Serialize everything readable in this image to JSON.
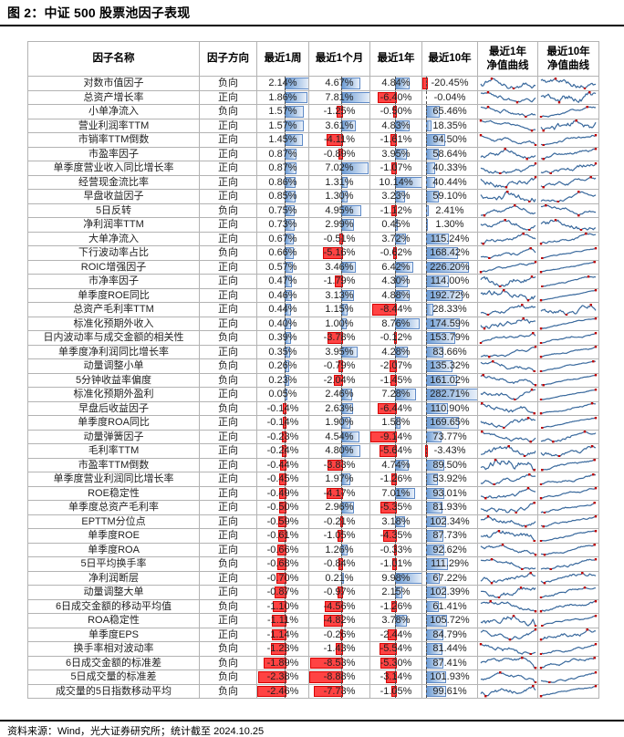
{
  "title": "图 2：中证 500 股票池因子表现",
  "source_note": "资料来源：Wind，光大证券研究所；统计截至 2024.10.25",
  "colors": {
    "bar_positive_solid": "#6D9CD4",
    "bar_positive_fade": "#EAF1FA",
    "bar_positive_border": "#5E8AC7",
    "bar_negative_fill": "#FF4343",
    "bar_negative_border": "#D90000",
    "sparkline_line": "#38689C",
    "sparkline_marker": "#C00000",
    "grid_border": "#B3B3B3",
    "rule_black": "#000000"
  },
  "table": {
    "headers": [
      "因子名称",
      "因子方向",
      "最近1周",
      "最近1个月",
      "最近1年",
      "最近10年",
      "最近1年\n净值曲线",
      "最近10年\n净值曲线"
    ],
    "bar_columns": [
      "w1",
      "m1",
      "y1",
      "y10"
    ],
    "rows": [
      {
        "name": "对数市值因子",
        "dir": "负向",
        "w1": "2.14%",
        "m1": "4.67%",
        "y1": "4.84%",
        "y10": "-20.45%"
      },
      {
        "name": "总资产增长率",
        "dir": "正向",
        "w1": "1.86%",
        "m1": "7.81%",
        "y1": "-6.40%",
        "y10": "-0.04%"
      },
      {
        "name": "小单净流入",
        "dir": "负向",
        "w1": "1.57%",
        "m1": "-1.25%",
        "y1": "-0.50%",
        "y10": "65.46%"
      },
      {
        "name": "营业利润率TTM",
        "dir": "正向",
        "w1": "1.57%",
        "m1": "3.61%",
        "y1": "4.83%",
        "y10": "18.35%"
      },
      {
        "name": "市销率TTM倒数",
        "dir": "正向",
        "w1": "1.45%",
        "m1": "-4.11%",
        "y1": "-1.61%",
        "y10": "94.50%"
      },
      {
        "name": "市盈率因子",
        "dir": "正向",
        "w1": "0.87%",
        "m1": "-0.89%",
        "y1": "3.95%",
        "y10": "58.64%"
      },
      {
        "name": "单季度营业收入同比增长率",
        "dir": "正向",
        "w1": "0.87%",
        "m1": "7.02%",
        "y1": "-1.07%",
        "y10": "40.33%"
      },
      {
        "name": "经营现金流比率",
        "dir": "正向",
        "w1": "0.86%",
        "m1": "1.31%",
        "y1": "10.14%",
        "y10": "40.44%"
      },
      {
        "name": "早盘收益因子",
        "dir": "正向",
        "w1": "0.85%",
        "m1": "1.30%",
        "y1": "3.23%",
        "y10": "59.10%"
      },
      {
        "name": "5日反转",
        "dir": "负向",
        "w1": "0.75%",
        "m1": "4.95%",
        "y1": "-1.12%",
        "y10": "2.41%"
      },
      {
        "name": "净利润率TTM",
        "dir": "正向",
        "w1": "0.73%",
        "m1": "2.99%",
        "y1": "0.45%",
        "y10": "1.30%"
      },
      {
        "name": "大单净流入",
        "dir": "正向",
        "w1": "0.67%",
        "m1": "-0.51%",
        "y1": "3.72%",
        "y10": "115.24%"
      },
      {
        "name": "下行波动率占比",
        "dir": "负向",
        "w1": "0.66%",
        "m1": "-5.16%",
        "y1": "-0.62%",
        "y10": "168.42%"
      },
      {
        "name": "ROIC增强因子",
        "dir": "正向",
        "w1": "0.57%",
        "m1": "3.46%",
        "y1": "6.42%",
        "y10": "226.20%"
      },
      {
        "name": "市净率因子",
        "dir": "正向",
        "w1": "0.47%",
        "m1": "-1.79%",
        "y1": "4.30%",
        "y10": "114.00%"
      },
      {
        "name": "单季度ROE同比",
        "dir": "正向",
        "w1": "0.46%",
        "m1": "3.13%",
        "y1": "4.88%",
        "y10": "192.72%"
      },
      {
        "name": "总资产毛利率TTM",
        "dir": "正向",
        "w1": "0.44%",
        "m1": "1.15%",
        "y1": "-8.44%",
        "y10": "28.33%"
      },
      {
        "name": "标准化预期外收入",
        "dir": "正向",
        "w1": "0.40%",
        "m1": "1.00%",
        "y1": "8.76%",
        "y10": "174.59%"
      },
      {
        "name": "日内波动率与成交金额的相关性",
        "dir": "负向",
        "w1": "0.39%",
        "m1": "-3.78%",
        "y1": "-0.12%",
        "y10": "153.79%"
      },
      {
        "name": "单季度净利润同比增长率",
        "dir": "正向",
        "w1": "0.35%",
        "m1": "3.95%",
        "y1": "4.28%",
        "y10": "83.66%"
      },
      {
        "name": "动量调整小单",
        "dir": "负向",
        "w1": "0.26%",
        "m1": "-0.79%",
        "y1": "-2.07%",
        "y10": "135.32%"
      },
      {
        "name": "5分钟收益率偏度",
        "dir": "负向",
        "w1": "0.23%",
        "m1": "-2.04%",
        "y1": "-1.45%",
        "y10": "161.02%"
      },
      {
        "name": "标准化预期外盈利",
        "dir": "正向",
        "w1": "0.05%",
        "m1": "2.46%",
        "y1": "7.28%",
        "y10": "282.71%"
      },
      {
        "name": "早盘后收益因子",
        "dir": "负向",
        "w1": "-0.14%",
        "m1": "2.63%",
        "y1": "-6.44%",
        "y10": "110.90%"
      },
      {
        "name": "单季度ROA同比",
        "dir": "正向",
        "w1": "-0.14%",
        "m1": "1.90%",
        "y1": "1.58%",
        "y10": "169.65%"
      },
      {
        "name": "动量弹簧因子",
        "dir": "正向",
        "w1": "-0.23%",
        "m1": "4.54%",
        "y1": "-9.14%",
        "y10": "73.77%"
      },
      {
        "name": "毛利率TTM",
        "dir": "正向",
        "w1": "-0.24%",
        "m1": "4.80%",
        "y1": "-5.64%",
        "y10": "-3.43%"
      },
      {
        "name": "市盈率TTM倒数",
        "dir": "正向",
        "w1": "-0.44%",
        "m1": "-3.83%",
        "y1": "4.74%",
        "y10": "89.50%"
      },
      {
        "name": "单季度营业利润同比增长率",
        "dir": "正向",
        "w1": "-0.45%",
        "m1": "1.97%",
        "y1": "-1.26%",
        "y10": "53.92%"
      },
      {
        "name": "ROE稳定性",
        "dir": "正向",
        "w1": "-0.49%",
        "m1": "-4.17%",
        "y1": "7.01%",
        "y10": "93.01%"
      },
      {
        "name": "单季度总资产毛利率",
        "dir": "正向",
        "w1": "-0.50%",
        "m1": "2.96%",
        "y1": "-5.35%",
        "y10": "81.93%"
      },
      {
        "name": "EPTTM分位点",
        "dir": "正向",
        "w1": "-0.59%",
        "m1": "-0.21%",
        "y1": "3.18%",
        "y10": "102.34%"
      },
      {
        "name": "单季度ROE",
        "dir": "正向",
        "w1": "-0.61%",
        "m1": "-1.05%",
        "y1": "-4.35%",
        "y10": "87.73%"
      },
      {
        "name": "单季度ROA",
        "dir": "正向",
        "w1": "-0.66%",
        "m1": "1.26%",
        "y1": "-0.33%",
        "y10": "92.62%"
      },
      {
        "name": "5日平均换手率",
        "dir": "负向",
        "w1": "-0.68%",
        "m1": "-0.84%",
        "y1": "-1.01%",
        "y10": "111.29%"
      },
      {
        "name": "净利润断层",
        "dir": "正向",
        "w1": "-0.70%",
        "m1": "0.21%",
        "y1": "9.98%",
        "y10": "67.22%"
      },
      {
        "name": "动量调整大单",
        "dir": "正向",
        "w1": "-0.87%",
        "m1": "-0.97%",
        "y1": "2.15%",
        "y10": "102.39%"
      },
      {
        "name": "6日成交金额的移动平均值",
        "dir": "负向",
        "w1": "-1.10%",
        "m1": "-4.56%",
        "y1": "-1.26%",
        "y10": "61.41%"
      },
      {
        "name": "ROA稳定性",
        "dir": "正向",
        "w1": "-1.11%",
        "m1": "-4.82%",
        "y1": "3.78%",
        "y10": "105.72%"
      },
      {
        "name": "单季度EPS",
        "dir": "正向",
        "w1": "-1.14%",
        "m1": "-0.26%",
        "y1": "-2.44%",
        "y10": "84.79%"
      },
      {
        "name": "换手率相对波动率",
        "dir": "负向",
        "w1": "-1.23%",
        "m1": "-1.43%",
        "y1": "-5.54%",
        "y10": "81.44%"
      },
      {
        "name": "6日成交金额的标准差",
        "dir": "负向",
        "w1": "-1.89%",
        "m1": "-8.53%",
        "y1": "-5.30%",
        "y10": "87.41%"
      },
      {
        "name": "5日成交量的标准差",
        "dir": "负向",
        "w1": "-2.38%",
        "m1": "-8.88%",
        "y1": "-3.14%",
        "y10": "101.93%"
      },
      {
        "name": "成交量的5日指数移动平均",
        "dir": "负向",
        "w1": "-2.46%",
        "m1": "-7.73%",
        "y1": "-1.05%",
        "y10": "99.61%"
      }
    ]
  }
}
